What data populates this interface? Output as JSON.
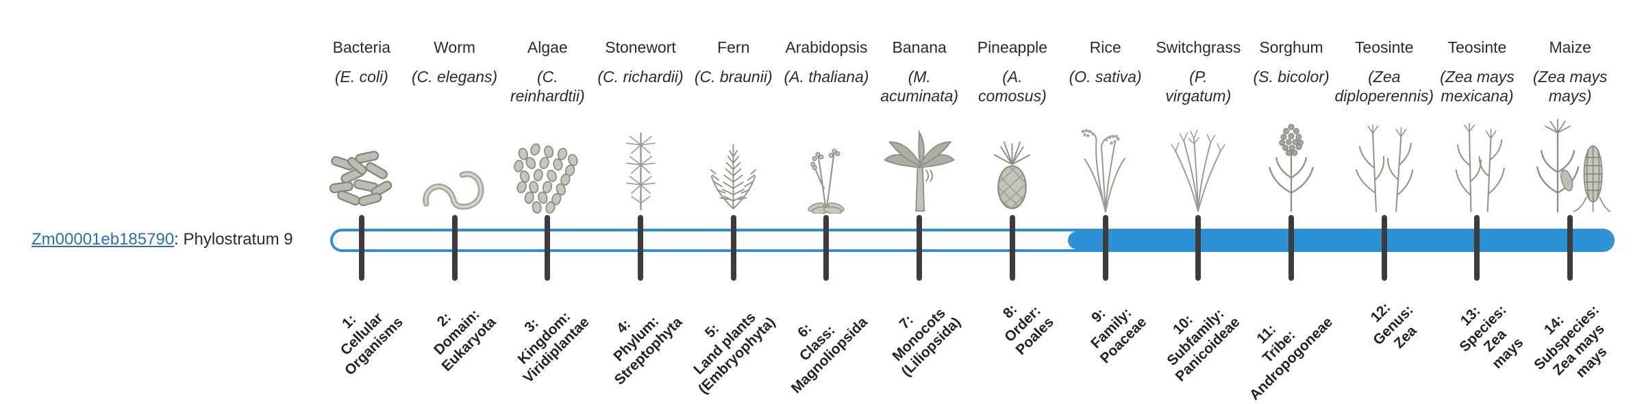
{
  "colors": {
    "accent_blue": "#2d91d5",
    "tick_gray": "#3c3c3c",
    "link_blue": "#2a6ebb",
    "bar_background": "#fcfcfc"
  },
  "gene": {
    "link_text": "Zm00001eb185790",
    "suffix_text": ": Phylostratum 9"
  },
  "bar": {
    "total_strata": 14,
    "filled_from_stratum": 9
  },
  "organisms": [
    {
      "stratum": 1,
      "common": "Bacteria",
      "sci": "(E. coli)",
      "icon": "bacteria-icon",
      "label": "1:\nCellular\nOrganisms"
    },
    {
      "stratum": 2,
      "common": "Worm",
      "sci": "(C. elegans)",
      "icon": "worm-icon",
      "label": "2:\nDomain:\nEukaryota"
    },
    {
      "stratum": 3,
      "common": "Algae",
      "sci": "(C.\nreinhardtii)",
      "icon": "algae-icon",
      "label": "3:\nKingdom:\nViridiplantae"
    },
    {
      "stratum": 4,
      "common": "Stonewort",
      "sci": "(C. richardii)",
      "icon": "stonewort-icon",
      "label": "4:\nPhylum:\nStreptophyta"
    },
    {
      "stratum": 5,
      "common": "Fern",
      "sci": "(C. braunii)",
      "icon": "fern-icon",
      "label": "5:\nLand plants\n(Embryophyta)"
    },
    {
      "stratum": 6,
      "common": "Arabidopsis",
      "sci": "(A. thaliana)",
      "icon": "arabidopsis-icon",
      "label": "6:\nClass:\nMagnoliopsida"
    },
    {
      "stratum": 7,
      "common": "Banana",
      "sci": "(M.\nacuminata)",
      "icon": "banana-icon",
      "label": "7:\nMonocots\n(Liliopsida)"
    },
    {
      "stratum": 8,
      "common": "Pineapple",
      "sci": "(A.\ncomosus)",
      "icon": "pineapple-icon",
      "label": "8:\nOrder:\nPoales"
    },
    {
      "stratum": 9,
      "common": "Rice",
      "sci": "(O. sativa)",
      "icon": "rice-icon",
      "label": "9:\nFamily:\nPoaceae"
    },
    {
      "stratum": 10,
      "common": "Switchgrass",
      "sci": "(P.\nvirgatum)",
      "icon": "switchgrass-icon",
      "label": "10:\nSubfamily:\nPanicoideae"
    },
    {
      "stratum": 11,
      "common": "Sorghum",
      "sci": "(S. bicolor)",
      "icon": "sorghum-icon",
      "label": "11:\nTribe:\nAndropogoneae"
    },
    {
      "stratum": 12,
      "common": "Teosinte",
      "sci": "(Zea\ndiploperennis)",
      "icon": "teosinte-diploperennis-icon",
      "label": "12:\nGenus:\nZea"
    },
    {
      "stratum": 13,
      "common": "Teosinte",
      "sci": "(Zea mays\nmexicana)",
      "icon": "teosinte-mexicana-icon",
      "label": "13:\nSpecies:\nZea\nmays"
    },
    {
      "stratum": 14,
      "common": "Maize",
      "sci": "(Zea mays\nmays)",
      "icon": "maize-icon",
      "label": "14:\nSubspecies:\nZea mays\nmays"
    }
  ]
}
